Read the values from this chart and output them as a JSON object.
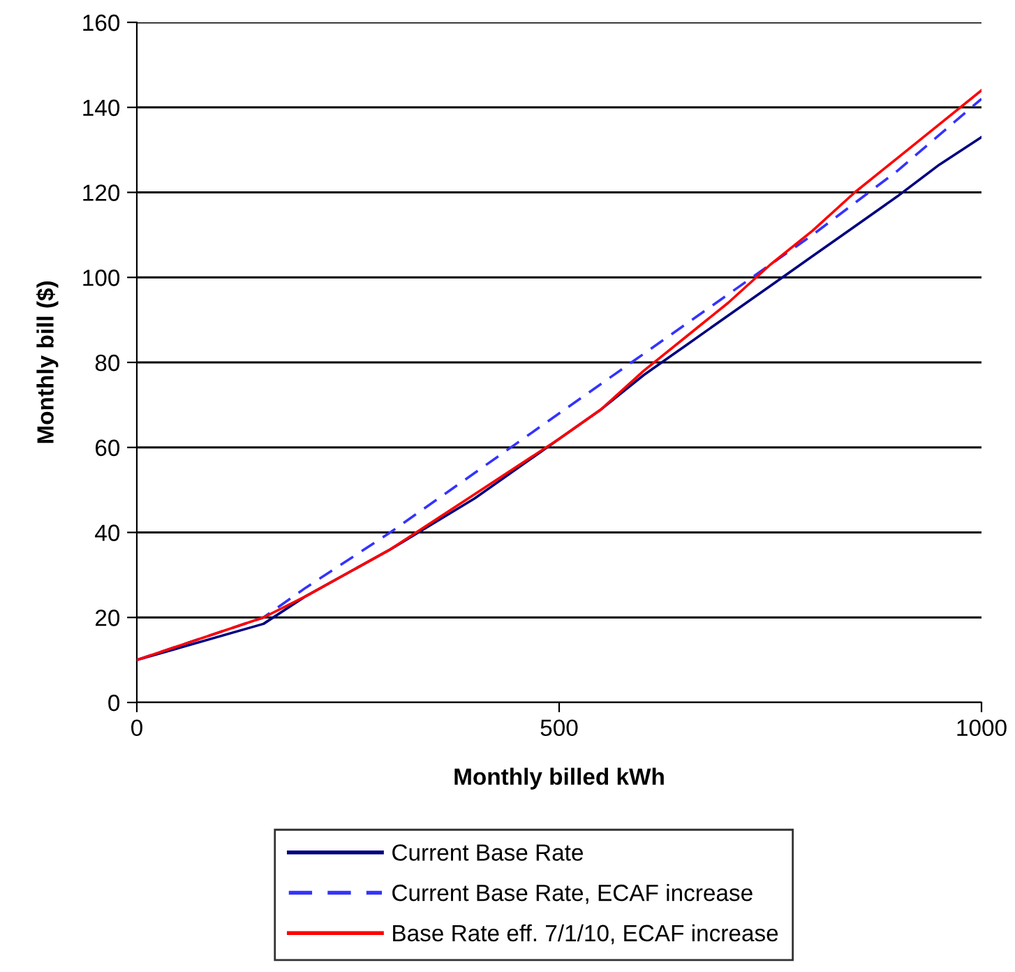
{
  "chart_data": {
    "type": "line",
    "xlabel": "Monthly billed kWh",
    "ylabel": "Monthly bill ($)",
    "xlim": [
      0,
      1000
    ],
    "xticks": [
      0,
      500,
      1000
    ],
    "ylim": [
      0,
      160
    ],
    "yticks": [
      0,
      20,
      40,
      60,
      80,
      100,
      120,
      140,
      160
    ],
    "grid": "y",
    "legend": "bottom",
    "series": [
      {
        "name": "Current Base Rate",
        "color": "#000080",
        "line_style": "solid",
        "x": [
          0,
          150,
          200,
          300,
          400,
          500,
          550,
          600,
          650,
          700,
          750,
          800,
          850,
          900,
          950,
          1000
        ],
        "values": [
          10,
          18.5,
          25,
          36,
          48,
          62,
          69,
          77,
          84,
          91,
          98,
          105,
          112,
          119,
          126.5,
          133
        ]
      },
      {
        "name": "Current Base Rate, ECAF increase",
        "color": "#3333ff",
        "line_style": "dashed",
        "x": [
          0,
          150,
          200,
          300,
          400,
          500,
          600,
          700,
          800,
          900,
          1000
        ],
        "values": [
          10,
          20,
          27,
          40,
          54,
          68,
          82,
          96,
          110,
          125,
          142
        ]
      },
      {
        "name": "Base Rate eff. 7/1/10, ECAF increase",
        "color": "#ff0000",
        "line_style": "solid",
        "x": [
          0,
          150,
          200,
          300,
          400,
          500,
          550,
          600,
          650,
          700,
          750,
          800,
          850,
          900,
          950,
          1000
        ],
        "values": [
          10,
          20,
          25,
          36,
          49,
          62,
          69,
          78,
          86,
          94,
          103,
          111,
          120,
          128,
          136,
          144
        ]
      }
    ]
  }
}
